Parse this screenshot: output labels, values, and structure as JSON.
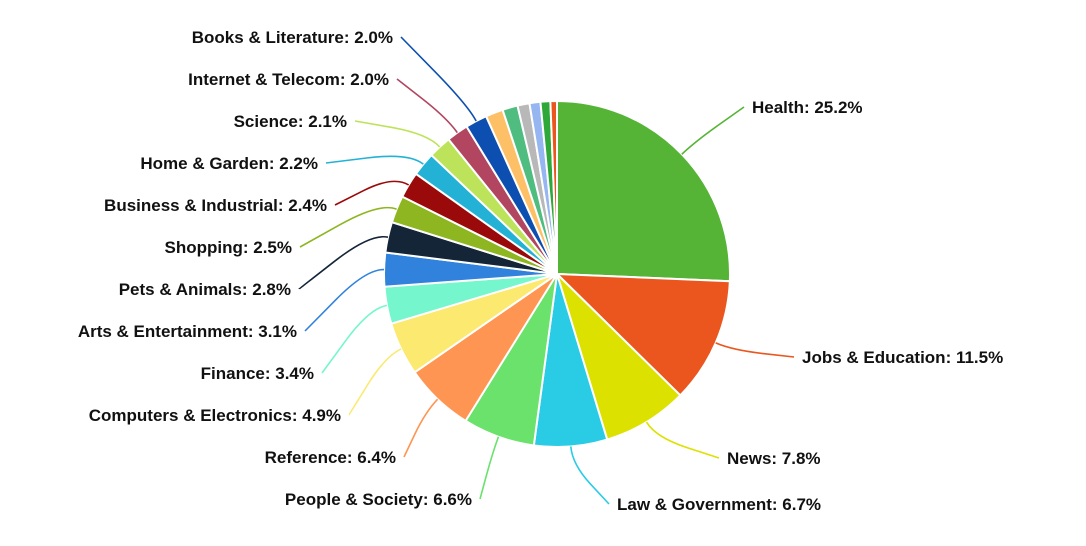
{
  "chart_data": {
    "type": "pie",
    "title": "",
    "slices": [
      {
        "label": "Health",
        "value": 25.2,
        "value_label": "25.2%",
        "color": "#55b436"
      },
      {
        "label": "Jobs & Education",
        "value": 11.5,
        "value_label": "11.5%",
        "color": "#ea561d"
      },
      {
        "label": "News",
        "value": 7.8,
        "value_label": "7.8%",
        "color": "#dde100"
      },
      {
        "label": "Law & Government",
        "value": 6.7,
        "value_label": "6.7%",
        "color": "#2acbe5"
      },
      {
        "label": "People & Society",
        "value": 6.6,
        "value_label": "6.6%",
        "color": "#6ae26c"
      },
      {
        "label": "Reference",
        "value": 6.4,
        "value_label": "6.4%",
        "color": "#ff9552"
      },
      {
        "label": "Computers & Electronics",
        "value": 4.9,
        "value_label": "4.9%",
        "color": "#fbe970"
      },
      {
        "label": "Finance",
        "value": 3.4,
        "value_label": "3.4%",
        "color": "#76f6cc"
      },
      {
        "label": "Arts & Entertainment",
        "value": 3.1,
        "value_label": "3.1%",
        "color": "#3082dd"
      },
      {
        "label": "Pets & Animals",
        "value": 2.8,
        "value_label": "2.8%",
        "color": "#142538"
      },
      {
        "label": "Shopping",
        "value": 2.5,
        "value_label": "2.5%",
        "color": "#8db620"
      },
      {
        "label": "Business & Industrial",
        "value": 2.4,
        "value_label": "2.4%",
        "color": "#9a0a0a"
      },
      {
        "label": "Home & Garden",
        "value": 2.2,
        "value_label": "2.2%",
        "color": "#23b2d6"
      },
      {
        "label": "Science",
        "value": 2.1,
        "value_label": "2.1%",
        "color": "#bde35a"
      },
      {
        "label": "Internet & Telecom",
        "value": 2.0,
        "value_label": "2.0%",
        "color": "#b24660"
      },
      {
        "label": "Books & Literature",
        "value": 2.0,
        "value_label": "2.0%",
        "color": "#0d4fb0"
      },
      {
        "label": "",
        "value": 1.6,
        "color": "#fdc067"
      },
      {
        "label": "",
        "value": 1.4,
        "color": "#4ebd7f"
      },
      {
        "label": "",
        "value": 1.1,
        "color": "#b8b8b8"
      },
      {
        "label": "",
        "value": 1.0,
        "color": "#96b6f2"
      },
      {
        "label": "",
        "value": 0.9,
        "color": "#2fa83a"
      },
      {
        "label": "",
        "value": 0.6,
        "color": "#ea561d"
      }
    ]
  }
}
